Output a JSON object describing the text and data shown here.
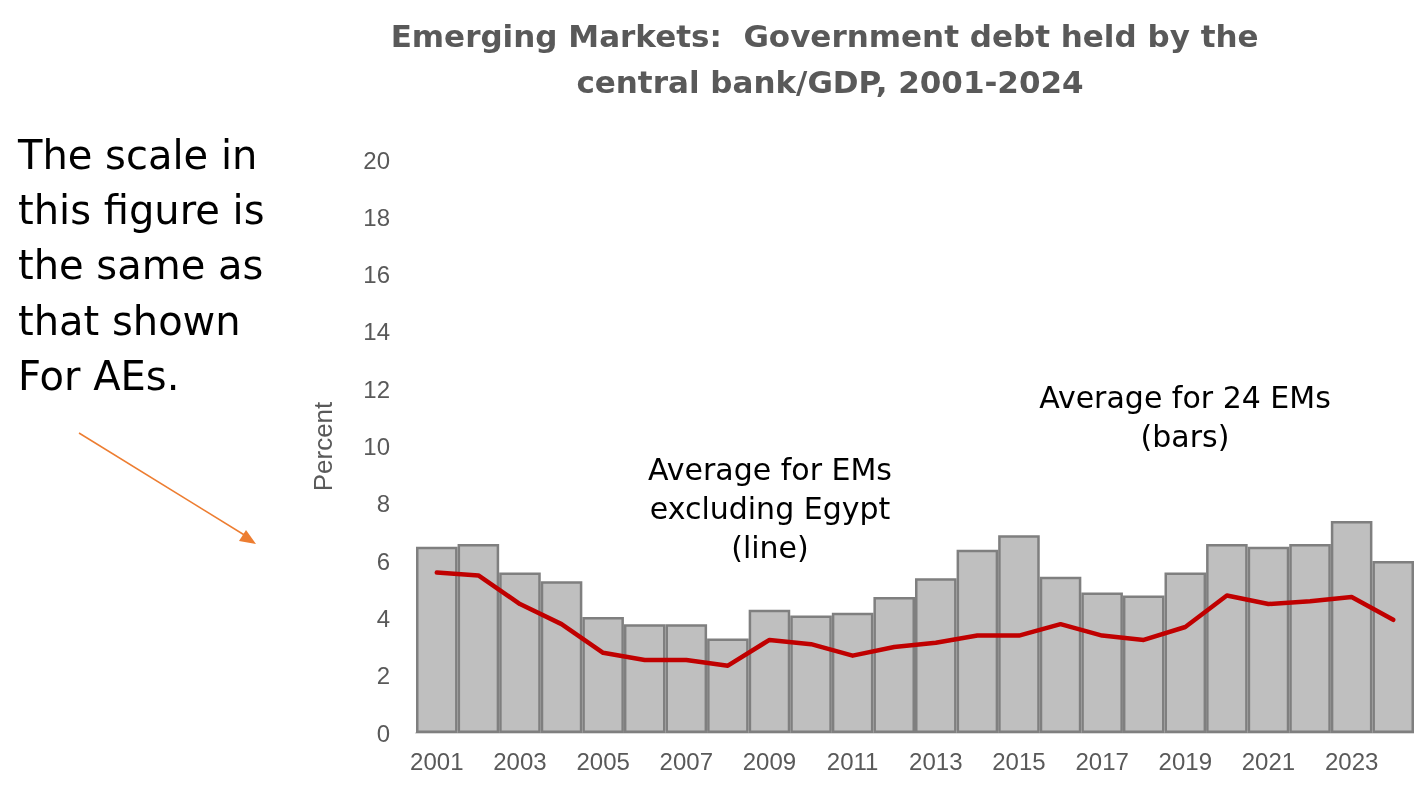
{
  "chart_data": {
    "type": "bar",
    "title": "Emerging Markets:  Government debt held by the central bank/GDP, 2001-2024",
    "ylabel": "Percent",
    "categories": [
      "2001",
      null,
      "2003",
      null,
      "2005",
      null,
      "2007",
      null,
      "2009",
      null,
      "2011",
      null,
      "2013",
      null,
      "2015",
      null,
      "2017",
      null,
      "2019",
      null,
      "2021",
      null,
      "2023",
      null
    ],
    "series": [
      {
        "color": "#bfbfbf",
        "values": [
          6.5,
          6.6,
          5.6,
          5.3,
          4.05,
          3.8,
          3.8,
          3.3,
          4.3,
          4.1,
          4.2,
          4.75,
          5.4,
          6.4,
          6.9,
          5.45,
          4.9,
          4.8,
          5.6,
          6.6,
          6.5,
          6.6,
          7.4,
          6.0
        ]
      },
      {
        "type": "line",
        "color": "#c00000",
        "values": [
          5.6,
          5.5,
          4.5,
          3.8,
          2.8,
          2.55,
          2.55,
          2.35,
          3.25,
          3.1,
          2.7,
          3.0,
          3.15,
          3.4,
          3.4,
          3.8,
          3.4,
          3.25,
          3.7,
          4.8,
          4.5,
          4.6,
          4.75,
          3.95
        ]
      }
    ],
    "ylim": [
      0,
      20
    ],
    "yticks": [
      0,
      2,
      4,
      6,
      8,
      10,
      12,
      14,
      16,
      18,
      20
    ],
    "grid": false,
    "marker": "none",
    "annotations": [
      "The scale in this figure is the same as that shown For AEs.",
      "Average for EMs excluding Egypt (line)",
      "Average for 24 EMs (bars)"
    ]
  }
}
